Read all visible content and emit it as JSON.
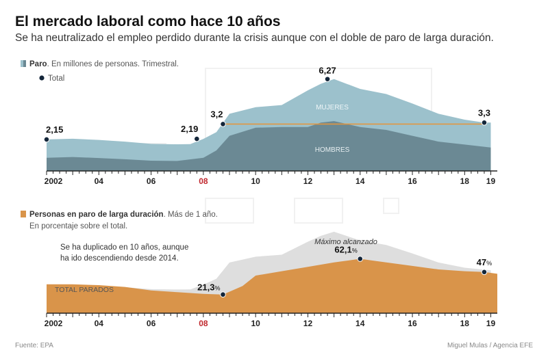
{
  "title": "El mercado laboral como hace 10 años",
  "subtitle": "Se ha neutralizado el empleo perdido durante la crisis aunque con el doble de paro de larga duración.",
  "source": "Fuente: EPA",
  "credit": "Miguel Mulas / Agencia EFE",
  "colors": {
    "mujeres": "#9cc1cc",
    "hombres": "#6b8994",
    "orange": "#d9944a",
    "orange_line": "#e2963f",
    "gray_area": "#dedede",
    "dot": "#14263a",
    "axis": "#222222",
    "highlight_year": "#c0272d"
  },
  "chart_data": [
    {
      "type": "area",
      "title": "Paro",
      "subtitle": ". En millones de personas. Trimestral.",
      "legend_total": "Total",
      "series": [
        {
          "name": "MUJERES",
          "x": [
            2002,
            2003,
            2004,
            2005,
            2006,
            2007,
            2007.5,
            2008,
            2008.5,
            2009,
            2010,
            2011,
            2012,
            2012.5,
            2013,
            2014,
            2015,
            2016,
            2017,
            2018,
            2018.75,
            2019
          ],
          "values": [
            2.15,
            2.2,
            2.12,
            2.0,
            1.85,
            1.82,
            1.83,
            2.19,
            2.65,
            3.9,
            4.35,
            4.5,
            5.5,
            5.95,
            6.27,
            5.6,
            5.25,
            4.6,
            3.9,
            3.5,
            3.3,
            3.3
          ]
        },
        {
          "name": "HOMBRES",
          "x": [
            2002,
            2003,
            2004,
            2005,
            2006,
            2007,
            2008,
            2008.5,
            2009,
            2010,
            2011,
            2012,
            2012.5,
            2013,
            2014,
            2015,
            2016,
            2017,
            2018,
            2019
          ],
          "values": [
            0.9,
            0.95,
            0.88,
            0.8,
            0.7,
            0.68,
            0.9,
            1.4,
            2.4,
            2.95,
            3.0,
            3.0,
            3.3,
            3.4,
            3.0,
            2.8,
            2.4,
            2.0,
            1.8,
            1.6
          ]
        }
      ],
      "reference_line": {
        "value": 3.2,
        "x_start": 2008.75,
        "x_end": 2018.75
      },
      "points": [
        {
          "x": 2002.0,
          "y": 2.15,
          "label": "2,15"
        },
        {
          "x": 2007.75,
          "y": 2.19,
          "label": "2,19"
        },
        {
          "x": 2008.75,
          "y": 3.2,
          "label": "3,2"
        },
        {
          "x": 2012.75,
          "y": 6.27,
          "label": "6,27"
        },
        {
          "x": 2018.75,
          "y": 3.3,
          "label": "3,3"
        }
      ],
      "xlim": [
        2002,
        2019.25
      ],
      "ylim": [
        0,
        7
      ]
    },
    {
      "type": "area",
      "title": "Personas en paro de larga duración",
      "subtitle": ". Más de 1 año.",
      "subtitle2": "En porcentaje sobre el total.",
      "note": [
        "Se ha duplicado en 10 años, aunque",
        "ha ido descendiendo desde 2014."
      ],
      "background_label": "TOTAL PARADOS",
      "annotation": "Máximo alcanzado",
      "series": [
        {
          "name": "TOTAL PARADOS",
          "x": [
            2002,
            2003,
            2004,
            2005,
            2006,
            2007,
            2007.5,
            2008,
            2008.5,
            2009,
            2010,
            2011,
            2012,
            2012.5,
            2013,
            2014,
            2015,
            2016,
            2017,
            2018,
            2019
          ],
          "values": [
            2.15,
            2.2,
            2.12,
            2.0,
            1.85,
            1.82,
            1.83,
            2.19,
            2.65,
            3.9,
            4.35,
            4.5,
            5.5,
            5.95,
            6.27,
            5.6,
            5.25,
            4.6,
            3.9,
            3.5,
            3.3
          ]
        },
        {
          "name": "Paro de larga duración (%)",
          "x": [
            2002,
            2003,
            2004,
            2005,
            2006,
            2007,
            2008,
            2008.75,
            2009.5,
            2010,
            2011,
            2012,
            2013,
            2014,
            2015,
            2016,
            2017,
            2018,
            2018.75,
            2019.25
          ],
          "values": [
            33,
            33,
            32,
            30,
            26,
            24,
            22,
            21.3,
            31,
            43,
            48,
            53,
            58,
            62.1,
            58,
            54,
            50,
            48,
            47,
            45
          ]
        }
      ],
      "points": [
        {
          "x": 2008.75,
          "y": 21.3,
          "label": "21,3",
          "suffix": "%"
        },
        {
          "x": 2014.0,
          "y": 62.1,
          "label": "62,1",
          "suffix": "%"
        },
        {
          "x": 2018.75,
          "y": 47.0,
          "label": "47",
          "suffix": "%"
        }
      ],
      "xlim": [
        2002,
        2019.25
      ],
      "ylim": [
        0,
        100
      ]
    }
  ],
  "x_axis": {
    "ticks": [
      {
        "year": 2002,
        "label": "2002"
      },
      {
        "year": 2004,
        "label": "04"
      },
      {
        "year": 2006,
        "label": "06"
      },
      {
        "year": 2008,
        "label": "08",
        "highlight": true
      },
      {
        "year": 2010,
        "label": "10"
      },
      {
        "year": 2012,
        "label": "12"
      },
      {
        "year": 2014,
        "label": "14"
      },
      {
        "year": 2016,
        "label": "16"
      },
      {
        "year": 2018,
        "label": "18"
      },
      {
        "year": 2019,
        "label": "19"
      }
    ]
  }
}
